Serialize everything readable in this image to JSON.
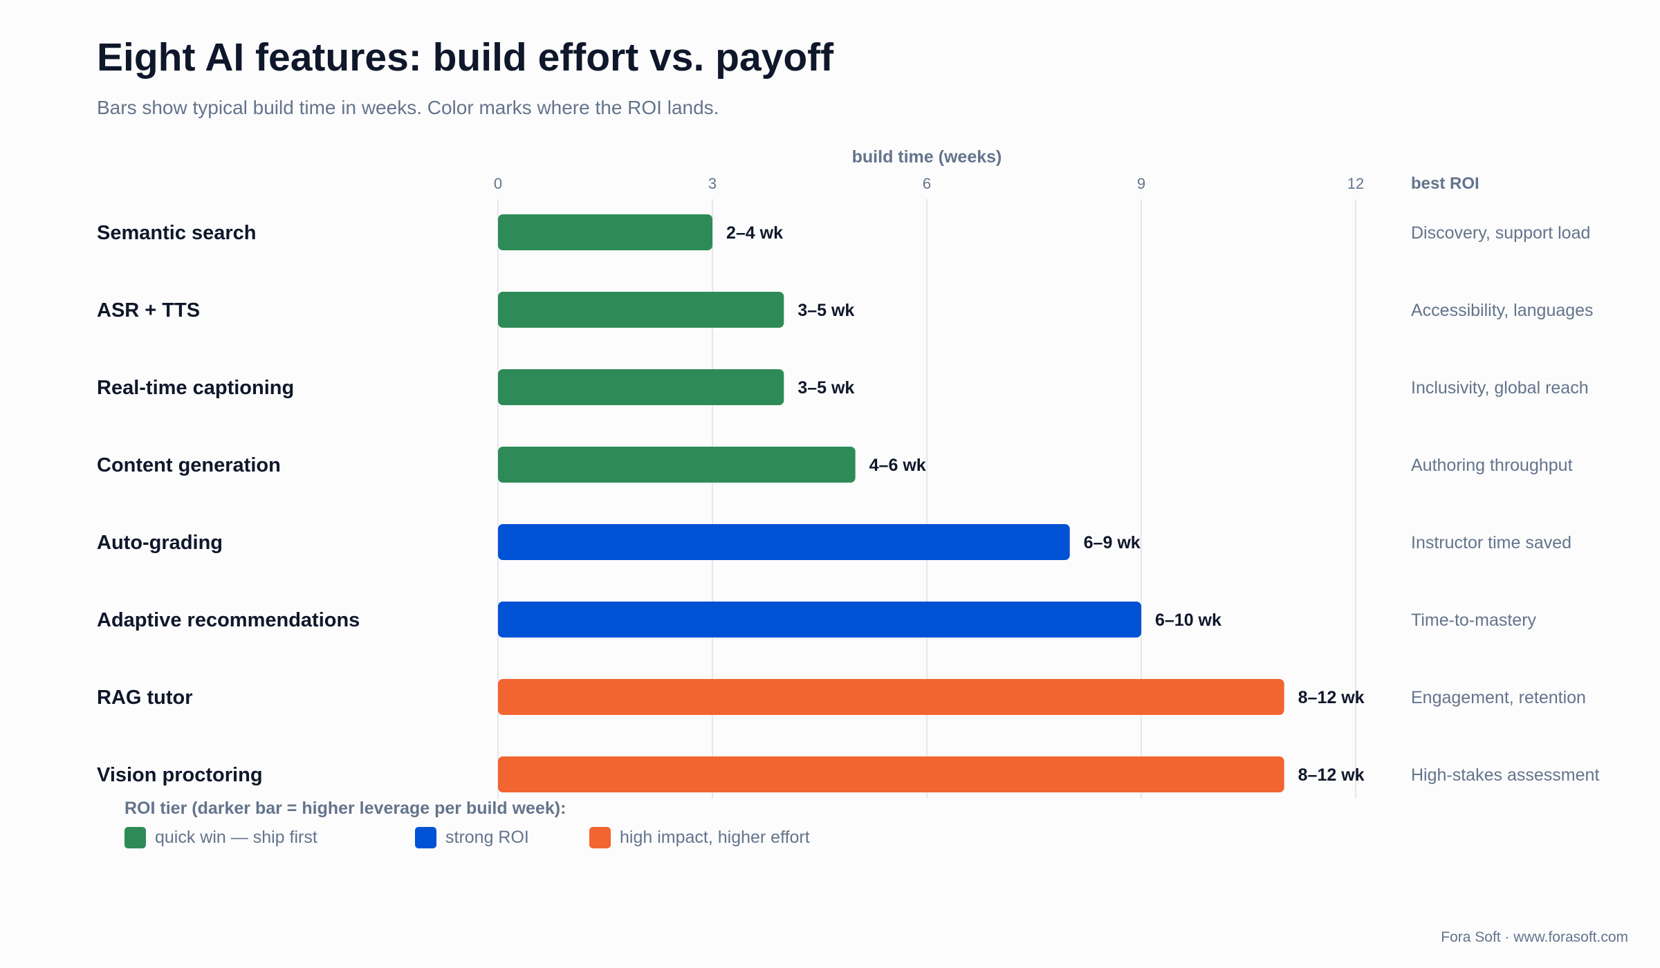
{
  "header": {
    "title": "Eight AI features: build effort vs. payoff",
    "subtitle": "Bars show typical build time in weeks. Color marks where the ROI lands."
  },
  "legend": {
    "title": "ROI tier (darker bar = higher leverage per build week):",
    "items": [
      {
        "label": "quick win — ship first",
        "color": "#2e8b57"
      },
      {
        "label": "strong ROI",
        "color": "#0052d4"
      },
      {
        "label": "high impact, higher effort",
        "color": "#f26530"
      }
    ]
  },
  "footer": {
    "credit": "Fora Soft · www.forasoft.com"
  },
  "chart_data": {
    "type": "bar",
    "orientation": "horizontal",
    "xlabel": "build time (weeks)",
    "xlim": [
      0,
      12
    ],
    "xticks": [
      0,
      3,
      6,
      9,
      12
    ],
    "grid": true,
    "right_column_header": "best ROI",
    "categories": [
      "Semantic search",
      "ASR + TTS",
      "Real-time captioning",
      "Content generation",
      "Auto-grading",
      "Adaptive recommendations",
      "RAG tutor",
      "Vision proctoring"
    ],
    "values": [
      3,
      4,
      4,
      5,
      8,
      9,
      11,
      11
    ],
    "value_labels": [
      "2–4 wk",
      "3–5 wk",
      "3–5 wk",
      "4–6 wk",
      "6–9 wk",
      "6–10 wk",
      "8–12 wk",
      "8–12 wk"
    ],
    "tiers": [
      "quick win — ship first",
      "quick win — ship first",
      "quick win — ship first",
      "quick win — ship first",
      "strong ROI",
      "strong ROI",
      "high impact, higher effort",
      "high impact, higher effort"
    ],
    "colors": [
      "#2e8b57",
      "#2e8b57",
      "#2e8b57",
      "#2e8b57",
      "#0052d4",
      "#0052d4",
      "#f26530",
      "#f26530"
    ],
    "best_roi": [
      "Discovery, support load",
      "Accessibility, languages",
      "Inclusivity, global reach",
      "Authoring throughput",
      "Instructor time saved",
      "Time-to-mastery",
      "Engagement, retention",
      "High-stakes assessment"
    ]
  }
}
